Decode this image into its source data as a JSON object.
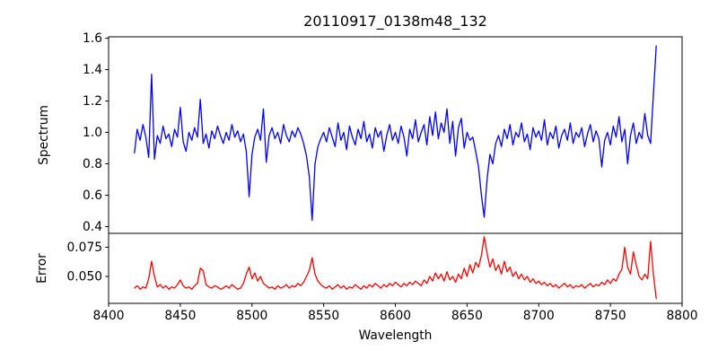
{
  "figure": {
    "title": "20110917_0138m48_132",
    "xlabel": "Wavelength",
    "background": "#ffffff",
    "frame_color": "#000000"
  },
  "chart_data": {
    "type": "line",
    "title": "20110917_0138m48_132",
    "xlabel": "Wavelength",
    "grid": false,
    "legend": "none",
    "x_axis": {
      "lim": [
        8400,
        8800
      ],
      "ticks": [
        8400,
        8450,
        8500,
        8550,
        8600,
        8650,
        8700,
        8750,
        8800
      ],
      "tick_labels": [
        "8400",
        "8450",
        "8500",
        "8550",
        "8600",
        "8650",
        "8700",
        "8750",
        "8800"
      ]
    },
    "x_start": 8418,
    "x_step": 2,
    "panels": [
      {
        "name": "spectrum",
        "ylabel": "Spectrum",
        "color": "#0000ff",
        "ylim": [
          0.357,
          1.609
        ],
        "yticks": [
          0.4,
          0.6,
          0.8,
          1.0,
          1.2,
          1.4,
          1.6
        ],
        "ytick_labels": [
          "0.4",
          "0.6",
          "0.8",
          "1.0",
          "1.2",
          "1.4",
          "1.6"
        ],
        "values": [
          0.87,
          1.02,
          0.95,
          1.05,
          0.97,
          0.84,
          1.37,
          0.83,
          0.98,
          0.93,
          1.04,
          0.96,
          0.99,
          0.91,
          1.02,
          0.97,
          1.16,
          0.94,
          0.88,
          1.0,
          0.95,
          1.03,
          0.97,
          1.21,
          0.93,
          0.99,
          0.9,
          1.01,
          0.96,
          1.04,
          0.98,
          0.93,
          1.0,
          0.95,
          1.05,
          0.97,
          1.01,
          0.94,
          0.99,
          0.88,
          0.59,
          0.86,
          0.97,
          1.02,
          0.95,
          1.15,
          0.81,
          0.98,
          1.03,
          0.96,
          1.0,
          0.93,
          1.05,
          0.98,
          0.94,
          1.01,
          0.97,
          1.03,
          0.99,
          0.93,
          0.85,
          0.72,
          0.44,
          0.8,
          0.91,
          0.96,
          1.0,
          0.94,
          1.03,
          0.97,
          0.91,
          1.06,
          0.95,
          1.0,
          0.89,
          1.04,
          0.97,
          0.92,
          1.02,
          0.96,
          1.07,
          0.94,
          0.99,
          0.9,
          1.03,
          0.97,
          1.01,
          0.88,
          0.98,
          1.05,
          0.95,
          1.0,
          0.93,
          1.04,
          0.97,
          0.85,
          1.02,
          0.96,
          1.08,
          0.94,
          1.0,
          1.05,
          0.92,
          1.1,
          0.98,
          1.13,
          0.96,
          1.06,
          1.0,
          1.15,
          0.93,
          1.07,
          0.85,
          1.03,
          1.09,
          0.9,
          1.0,
          0.95,
          0.97,
          0.88,
          0.78,
          0.6,
          0.46,
          0.7,
          0.86,
          0.8,
          0.93,
          0.98,
          0.91,
          1.02,
          0.96,
          1.05,
          0.92,
          1.0,
          0.97,
          1.06,
          0.94,
          0.99,
          0.89,
          1.03,
          0.97,
          1.01,
          0.95,
          1.08,
          0.92,
          1.0,
          0.96,
          1.04,
          0.9,
          0.98,
          1.02,
          0.95,
          1.06,
          0.93,
          1.0,
          0.97,
          1.03,
          0.91,
          0.99,
          1.05,
          0.94,
          1.01,
          0.96,
          0.78,
          0.95,
          1.0,
          0.92,
          1.04,
          0.97,
          1.1,
          0.94,
          1.02,
          0.8,
          0.98,
          1.06,
          0.93,
          1.0,
          0.96,
          1.12,
          0.98,
          0.93,
          1.24,
          1.55
        ]
      },
      {
        "name": "error",
        "ylabel": "Error",
        "color": "#ff0000",
        "ylim": [
          0.0269,
          0.0869
        ],
        "yticks": [
          0.05,
          0.075
        ],
        "ytick_labels": [
          "0.050",
          "0.075"
        ],
        "values": [
          0.04,
          0.042,
          0.039,
          0.041,
          0.04,
          0.048,
          0.063,
          0.05,
          0.041,
          0.043,
          0.04,
          0.042,
          0.039,
          0.041,
          0.04,
          0.043,
          0.047,
          0.042,
          0.04,
          0.041,
          0.039,
          0.042,
          0.044,
          0.057,
          0.055,
          0.043,
          0.041,
          0.04,
          0.042,
          0.041,
          0.039,
          0.04,
          0.042,
          0.04,
          0.043,
          0.041,
          0.039,
          0.04,
          0.044,
          0.052,
          0.058,
          0.048,
          0.053,
          0.046,
          0.05,
          0.044,
          0.042,
          0.04,
          0.041,
          0.039,
          0.042,
          0.04,
          0.041,
          0.043,
          0.04,
          0.042,
          0.041,
          0.044,
          0.042,
          0.045,
          0.05,
          0.055,
          0.066,
          0.052,
          0.046,
          0.043,
          0.041,
          0.04,
          0.042,
          0.039,
          0.041,
          0.043,
          0.04,
          0.042,
          0.039,
          0.041,
          0.04,
          0.043,
          0.041,
          0.039,
          0.042,
          0.04,
          0.043,
          0.041,
          0.044,
          0.042,
          0.04,
          0.043,
          0.041,
          0.044,
          0.042,
          0.045,
          0.043,
          0.041,
          0.044,
          0.042,
          0.045,
          0.043,
          0.046,
          0.044,
          0.042,
          0.047,
          0.044,
          0.05,
          0.046,
          0.053,
          0.048,
          0.052,
          0.046,
          0.054,
          0.047,
          0.05,
          0.045,
          0.052,
          0.048,
          0.057,
          0.05,
          0.06,
          0.053,
          0.062,
          0.058,
          0.068,
          0.084,
          0.07,
          0.058,
          0.065,
          0.055,
          0.06,
          0.052,
          0.063,
          0.054,
          0.058,
          0.05,
          0.054,
          0.048,
          0.052,
          0.047,
          0.05,
          0.045,
          0.048,
          0.044,
          0.046,
          0.043,
          0.045,
          0.042,
          0.044,
          0.041,
          0.043,
          0.04,
          0.042,
          0.044,
          0.041,
          0.043,
          0.04,
          0.042,
          0.041,
          0.043,
          0.04,
          0.042,
          0.044,
          0.041,
          0.043,
          0.042,
          0.045,
          0.043,
          0.047,
          0.044,
          0.048,
          0.046,
          0.052,
          0.056,
          0.075,
          0.058,
          0.052,
          0.071,
          0.06,
          0.05,
          0.047,
          0.052,
          0.048,
          0.08,
          0.052,
          0.031
        ]
      }
    ]
  }
}
